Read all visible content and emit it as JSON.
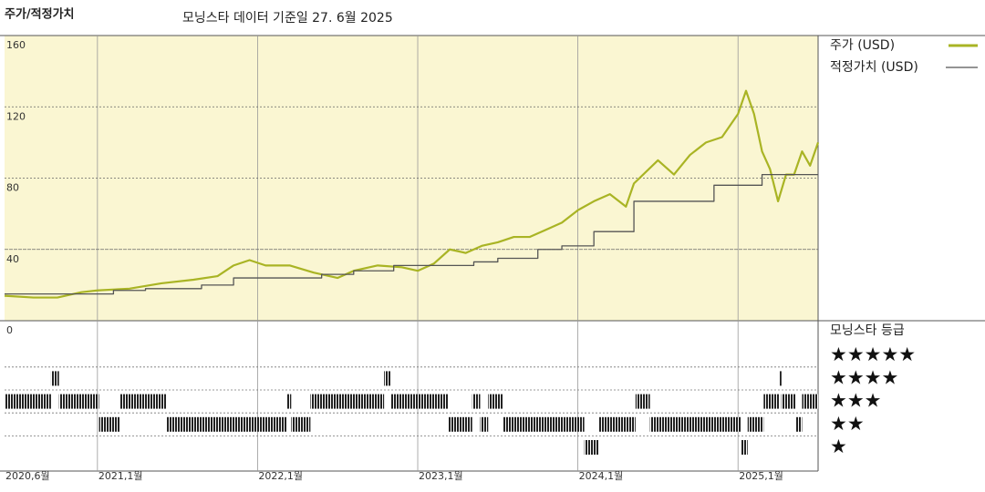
{
  "chart_data": {
    "type": "line",
    "title": "주가/적정가치",
    "subtitle": "모닝스타 데이터 기준일 27. 6월 2025",
    "xlim": [
      2020.42,
      2025.5
    ],
    "xticks": [
      {
        "value": 2020.42,
        "label": "2020,6월"
      },
      {
        "value": 2021.0,
        "label": "2021,1월"
      },
      {
        "value": 2022.0,
        "label": "2022,1월"
      },
      {
        "value": 2023.0,
        "label": "2023,1월"
      },
      {
        "value": 2024.0,
        "label": "2024,1월"
      },
      {
        "value": 2025.0,
        "label": "2025,1월"
      }
    ],
    "ylim": [
      0,
      160
    ],
    "yticks": [
      0,
      40,
      80,
      120,
      160
    ],
    "grid": true,
    "background": "#faf6d2",
    "series": [
      {
        "name": "주가 (USD)",
        "color": "#a9b424",
        "x": [
          2020.42,
          2020.6,
          2020.75,
          2020.9,
          2021.0,
          2021.2,
          2021.4,
          2021.6,
          2021.75,
          2021.85,
          2021.95,
          2022.05,
          2022.2,
          2022.35,
          2022.5,
          2022.6,
          2022.75,
          2022.9,
          2023.0,
          2023.1,
          2023.2,
          2023.3,
          2023.4,
          2023.5,
          2023.6,
          2023.7,
          2023.8,
          2023.9,
          2024.0,
          2024.1,
          2024.2,
          2024.3,
          2024.35,
          2024.5,
          2024.6,
          2024.7,
          2024.8,
          2024.9,
          2025.0,
          2025.05,
          2025.1,
          2025.15,
          2025.2,
          2025.25,
          2025.3,
          2025.35,
          2025.4,
          2025.45,
          2025.5
        ],
        "values": [
          14,
          13,
          13,
          16,
          17,
          18,
          21,
          23,
          25,
          31,
          34,
          31,
          31,
          27,
          24,
          28,
          31,
          30,
          28,
          32,
          40,
          38,
          42,
          44,
          47,
          47,
          51,
          55,
          62,
          67,
          71,
          64,
          77,
          90,
          82,
          93,
          100,
          103,
          116,
          129,
          116,
          95,
          85,
          67,
          82,
          82,
          95,
          87,
          100
        ]
      },
      {
        "name": "적정가치 (USD)",
        "color": "#555555",
        "step": "post",
        "x": [
          2020.42,
          2021.1,
          2021.3,
          2021.65,
          2021.85,
          2022.4,
          2022.6,
          2022.85,
          2023.35,
          2023.5,
          2023.75,
          2023.9,
          2024.1,
          2024.35,
          2024.85,
          2025.15,
          2025.5
        ],
        "values": [
          15,
          17,
          18,
          20,
          24,
          26,
          28,
          31,
          33,
          35,
          40,
          42,
          50,
          67,
          76,
          82,
          82
        ]
      }
    ],
    "rating": {
      "title": "모닝스타 등급",
      "levels": [
        5,
        4,
        3,
        2,
        1
      ],
      "labels": [
        "★★★★★",
        "★★★★",
        "★★★",
        "★★",
        "★"
      ],
      "segments": [
        {
          "start": 2020.42,
          "end": 2020.71,
          "stars": 3
        },
        {
          "start": 2020.71,
          "end": 2020.76,
          "stars": 4
        },
        {
          "start": 2020.76,
          "end": 2021.01,
          "stars": 3
        },
        {
          "start": 2021.01,
          "end": 2021.14,
          "stars": 2
        },
        {
          "start": 2021.14,
          "end": 2021.43,
          "stars": 3
        },
        {
          "start": 2021.43,
          "end": 2022.18,
          "stars": 2
        },
        {
          "start": 2022.18,
          "end": 2022.21,
          "stars": 3
        },
        {
          "start": 2022.21,
          "end": 2022.33,
          "stars": 2
        },
        {
          "start": 2022.33,
          "end": 2022.79,
          "stars": 3
        },
        {
          "start": 2022.79,
          "end": 2022.83,
          "stars": 4
        },
        {
          "start": 2022.83,
          "end": 2023.19,
          "stars": 3
        },
        {
          "start": 2023.19,
          "end": 2023.34,
          "stars": 2
        },
        {
          "start": 2023.34,
          "end": 2023.39,
          "stars": 3
        },
        {
          "start": 2023.39,
          "end": 2023.44,
          "stars": 2
        },
        {
          "start": 2023.44,
          "end": 2023.53,
          "stars": 3
        },
        {
          "start": 2023.53,
          "end": 2024.04,
          "stars": 2
        },
        {
          "start": 2024.04,
          "end": 2024.13,
          "stars": 1
        },
        {
          "start": 2024.13,
          "end": 2024.36,
          "stars": 2
        },
        {
          "start": 2024.36,
          "end": 2024.45,
          "stars": 3
        },
        {
          "start": 2024.45,
          "end": 2025.02,
          "stars": 2
        },
        {
          "start": 2025.02,
          "end": 2025.06,
          "stars": 1
        },
        {
          "start": 2025.06,
          "end": 2025.16,
          "stars": 2
        },
        {
          "start": 2025.16,
          "end": 2025.26,
          "stars": 3
        },
        {
          "start": 2025.26,
          "end": 2025.27,
          "stars": 4
        },
        {
          "start": 2025.27,
          "end": 2025.36,
          "stars": 3
        },
        {
          "start": 2025.36,
          "end": 2025.4,
          "stars": 2
        },
        {
          "start": 2025.4,
          "end": 2025.5,
          "stars": 3
        }
      ]
    }
  }
}
